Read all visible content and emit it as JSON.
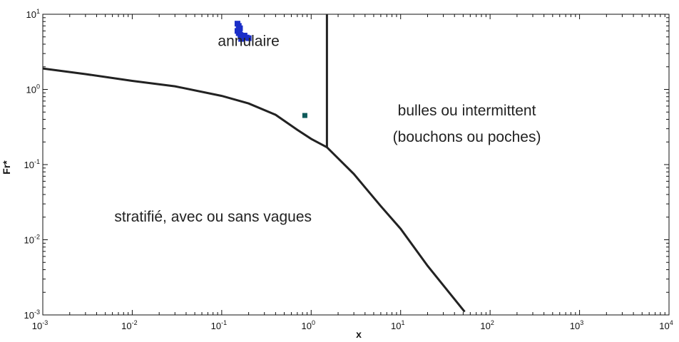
{
  "chart_data": {
    "type": "line",
    "xlabel": "x",
    "ylabel": "Fr*",
    "x_scale": "log",
    "y_scale": "log",
    "xlim": [
      0.001,
      10000
    ],
    "ylim": [
      0.001,
      10
    ],
    "x_ticks": [
      {
        "base": "10",
        "exp": "-3",
        "value": 0.001
      },
      {
        "base": "10",
        "exp": "-2",
        "value": 0.01
      },
      {
        "base": "10",
        "exp": "-1",
        "value": 0.1
      },
      {
        "base": "10",
        "exp": "0",
        "value": 1
      },
      {
        "base": "10",
        "exp": "1",
        "value": 10
      },
      {
        "base": "10",
        "exp": "2",
        "value": 100
      },
      {
        "base": "10",
        "exp": "3",
        "value": 1000
      },
      {
        "base": "10",
        "exp": "4",
        "value": 10000
      }
    ],
    "y_ticks": [
      {
        "base": "10",
        "exp": "-3",
        "value": 0.001
      },
      {
        "base": "10",
        "exp": "-2",
        "value": 0.01
      },
      {
        "base": "10",
        "exp": "-1",
        "value": 0.1
      },
      {
        "base": "10",
        "exp": "0",
        "value": 1
      },
      {
        "base": "10",
        "exp": "1",
        "value": 10
      }
    ],
    "boundary_curve": {
      "x": [
        0.001,
        0.003,
        0.01,
        0.03,
        0.1,
        0.2,
        0.4,
        0.7,
        1.0,
        1.5,
        3,
        6,
        10,
        20,
        52
      ],
      "y": [
        1.9,
        1.6,
        1.3,
        1.1,
        0.82,
        0.65,
        0.46,
        0.29,
        0.22,
        0.17,
        0.075,
        0.028,
        0.014,
        0.0045,
        0.0011
      ]
    },
    "vertical_boundary": {
      "x": 1.5,
      "y": [
        0.17,
        10
      ]
    },
    "regions": [
      {
        "label": "annulaire",
        "x": 0.2,
        "y": 3.8
      },
      {
        "label": "bulles ou intermittent",
        "x": 55,
        "y": 0.45
      },
      {
        "label": "(bouchons ou poches)",
        "x": 55,
        "y": 0.2
      },
      {
        "label": "stratifié, avec ou sans vagues",
        "x": 0.08,
        "y": 0.0175
      }
    ],
    "points_blue": [
      {
        "x": 0.15,
        "y": 7.5
      },
      {
        "x": 0.155,
        "y": 7.0
      },
      {
        "x": 0.16,
        "y": 6.5
      },
      {
        "x": 0.15,
        "y": 6.0
      },
      {
        "x": 0.155,
        "y": 5.6
      },
      {
        "x": 0.162,
        "y": 5.3
      },
      {
        "x": 0.17,
        "y": 5.0
      },
      {
        "x": 0.18,
        "y": 5.2
      },
      {
        "x": 0.19,
        "y": 4.9
      },
      {
        "x": 0.2,
        "y": 4.8
      },
      {
        "x": 0.165,
        "y": 4.7
      },
      {
        "x": 0.158,
        "y": 5.8
      }
    ],
    "points_teal": [
      {
        "x": 0.85,
        "y": 0.45
      }
    ],
    "colors": {
      "curve": "#222222",
      "blue_points": "#1a2ec8",
      "teal_points": "#0f5a5a"
    }
  }
}
